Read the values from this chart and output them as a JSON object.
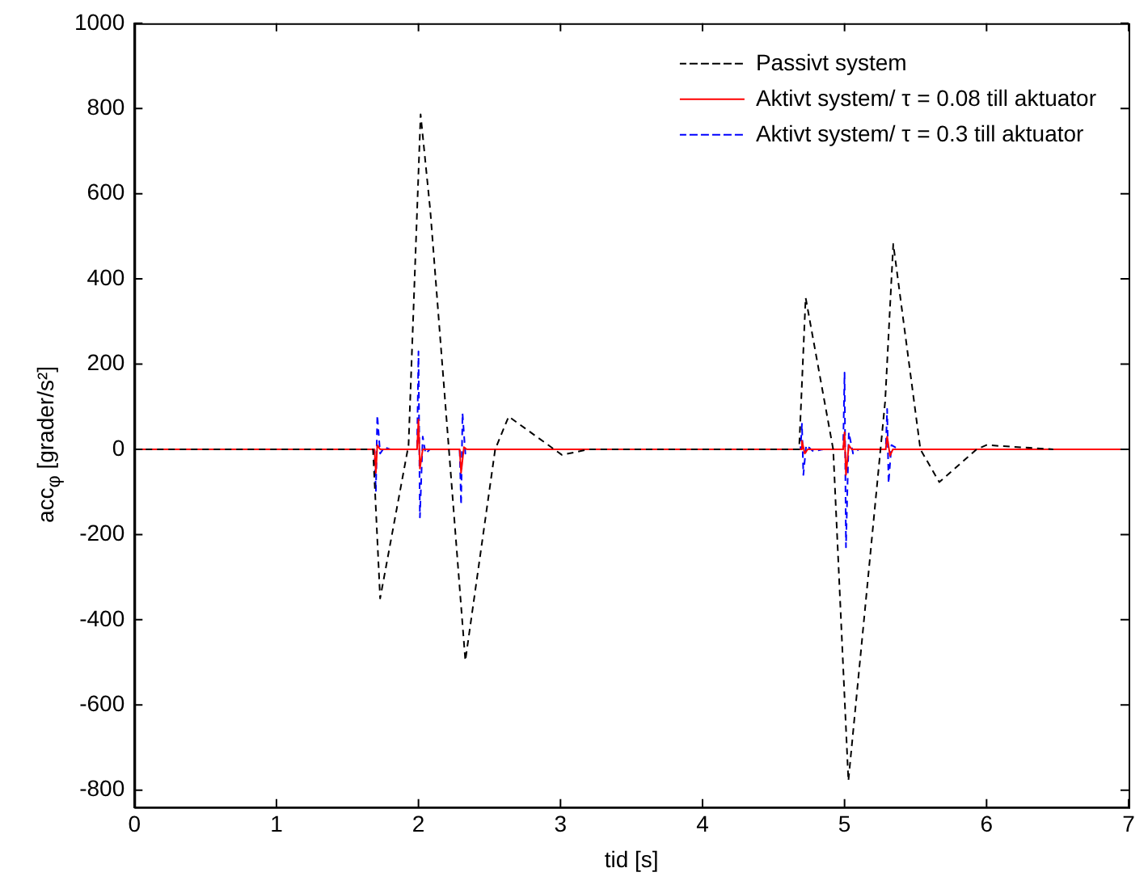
{
  "chart_data": {
    "type": "line",
    "xlabel": "tid [s]",
    "ylabel": "acc$_{φ}$ [grader/s²]",
    "xlim": [
      0,
      7
    ],
    "xticks": [
      0,
      1,
      2,
      3,
      4,
      5,
      6,
      7
    ],
    "ylim": [
      -840,
      1000
    ],
    "yticks": [
      -800,
      -600,
      -400,
      -200,
      0,
      200,
      400,
      600,
      800,
      1000
    ],
    "grid": false,
    "legend": "top right",
    "marker": "none",
    "series": [
      {
        "name": "Passivt system",
        "color": "#000000",
        "line_style": "dashed",
        "x": [
          0,
          1.68,
          1.73,
          1.93,
          2.015,
          2.083,
          2.33,
          2.54,
          2.635,
          3.01,
          3.2,
          4.68,
          4.726,
          4.92,
          5.027,
          5.286,
          5.343,
          5.534,
          5.667,
          5.93,
          6.0,
          6.47
        ],
        "values": [
          0,
          0,
          -350,
          10,
          786,
          561,
          -496,
          0,
          77,
          -13,
          0,
          0,
          356,
          0,
          -778,
          113,
          482,
          0,
          -77,
          0,
          10,
          0
        ]
      },
      {
        "name": "Aktivt system/ τ = 0.08 till aktuator",
        "color": "#ff0000",
        "line_style": "solid",
        "x": [
          0,
          1.69,
          1.7,
          1.71,
          1.73,
          1.99,
          2.0,
          2.01,
          2.03,
          2.29,
          2.3,
          2.32,
          2.34,
          4.69,
          4.7,
          4.72,
          4.74,
          4.99,
          5.0,
          5.01,
          5.03,
          5.05,
          5.29,
          5.3,
          5.32,
          5.34,
          7
        ],
        "values": [
          0,
          0,
          -55,
          10,
          0,
          0,
          70,
          -45,
          0,
          0,
          -55,
          5,
          0,
          0,
          20,
          -10,
          0,
          0,
          40,
          -60,
          10,
          0,
          0,
          30,
          -15,
          0,
          0
        ]
      },
      {
        "name": "Aktivt system/ τ = 0.3 till aktuator",
        "color": "#0000ff",
        "line_style": "dashed",
        "x": [
          0,
          1.69,
          1.7,
          1.71,
          1.73,
          1.76,
          1.8,
          1.99,
          2.0,
          2.01,
          2.03,
          2.05,
          2.08,
          2.29,
          2.3,
          2.31,
          2.33,
          2.36,
          4.69,
          4.7,
          4.71,
          4.73,
          4.78,
          4.85,
          4.99,
          5.0,
          5.01,
          5.03,
          5.06,
          5.1,
          5.29,
          5.3,
          5.31,
          5.33,
          5.38,
          7
        ],
        "values": [
          0,
          0,
          -100,
          80,
          -10,
          5,
          0,
          0,
          230,
          -160,
          30,
          -10,
          0,
          0,
          -130,
          85,
          -10,
          0,
          0,
          60,
          -60,
          10,
          -5,
          0,
          0,
          180,
          -230,
          40,
          -10,
          0,
          0,
          95,
          -80,
          10,
          0,
          0
        ]
      }
    ]
  }
}
